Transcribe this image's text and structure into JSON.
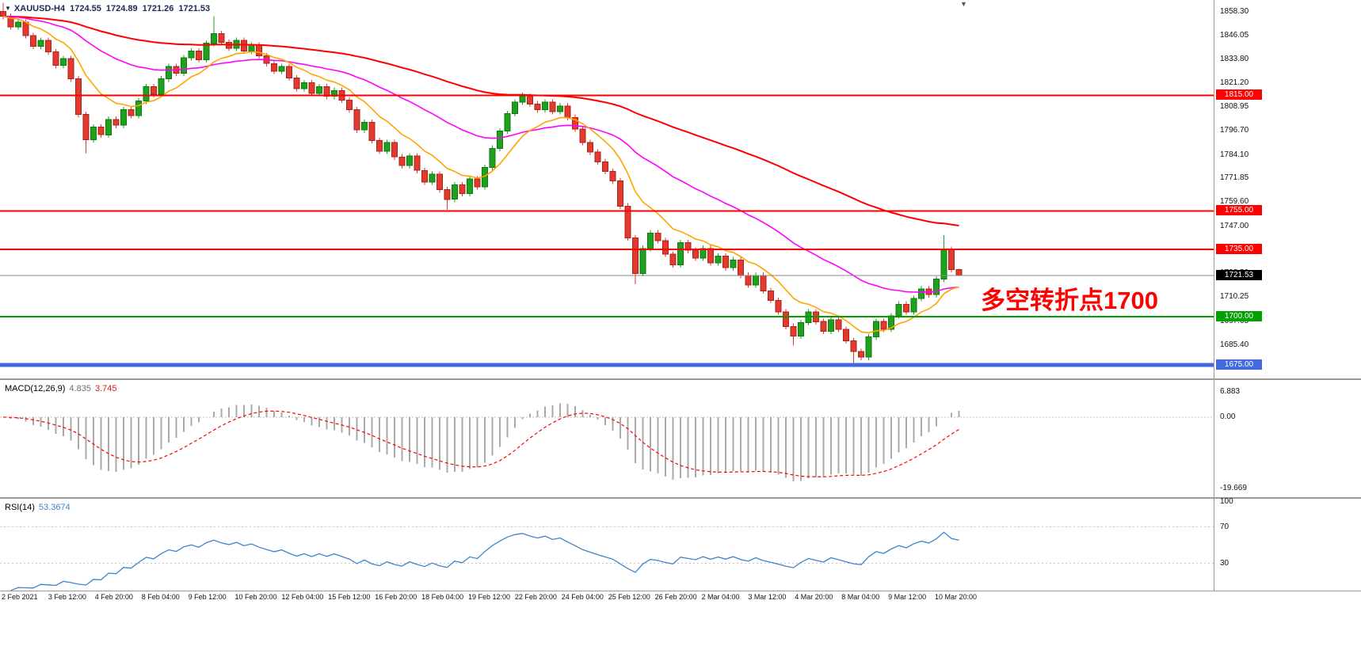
{
  "header": {
    "toggle_icon": "▼",
    "symbol_period": "XAUUSD-H4",
    "open": "1724.55",
    "high": "1724.89",
    "low": "1721.26",
    "close": "1721.53",
    "shift_icon": "▼"
  },
  "annotation": {
    "text": "多空转折点1700",
    "color": "#fe0000"
  },
  "chart_data": [
    {
      "type": "candlestick",
      "title": "XAUUSD-H4",
      "symbol": "XAUUSD",
      "timeframe": "H4",
      "ylim": [
        1668.0,
        1864.5
      ],
      "y_ticks": [
        "1858.30",
        "1846.05",
        "1833.80",
        "1821.20",
        "1808.95",
        "1796.70",
        "1784.10",
        "1771.85",
        "1759.60",
        "1747.00",
        "1734.75",
        "1722.50",
        "1710.25",
        "1697.65",
        "1685.40",
        "1673.15"
      ],
      "time_labels": [
        "2 Feb 2021",
        "3 Feb 12:00",
        "4 Feb 20:00",
        "8 Feb 04:00",
        "9 Feb 12:00",
        "10 Feb 20:00",
        "12 Feb 04:00",
        "15 Feb 12:00",
        "16 Feb 20:00",
        "18 Feb 04:00",
        "19 Feb 12:00",
        "22 Feb 20:00",
        "24 Feb 04:00",
        "25 Feb 12:00",
        "26 Feb 20:00",
        "2 Mar 04:00",
        "3 Mar 12:00",
        "4 Mar 20:00",
        "8 Mar 04:00",
        "9 Mar 12:00",
        "10 Mar 20:00"
      ],
      "ohlc": [
        [
          1858.5,
          1863.0,
          1854.5,
          1856.0
        ],
        [
          1856.0,
          1857.5,
          1849.0,
          1850.5
        ],
        [
          1850.5,
          1854.5,
          1849.0,
          1853.0
        ],
        [
          1853.0,
          1854.5,
          1844.5,
          1846.0
        ],
        [
          1846.0,
          1847.5,
          1839.0,
          1840.5
        ],
        [
          1840.5,
          1845.0,
          1839.0,
          1843.5
        ],
        [
          1843.5,
          1845.0,
          1836.0,
          1837.5
        ],
        [
          1837.5,
          1839.0,
          1829.0,
          1830.5
        ],
        [
          1830.5,
          1835.5,
          1829.0,
          1834.0
        ],
        [
          1834.0,
          1835.5,
          1822.0,
          1823.5
        ],
        [
          1823.5,
          1825.0,
          1803.5,
          1805.0
        ],
        [
          1805.0,
          1806.5,
          1785.0,
          1792.0
        ],
        [
          1792.0,
          1800.0,
          1790.5,
          1798.5
        ],
        [
          1798.5,
          1800.0,
          1793.0,
          1794.5
        ],
        [
          1794.5,
          1804.0,
          1793.0,
          1802.5
        ],
        [
          1802.5,
          1804.0,
          1798.0,
          1799.5
        ],
        [
          1799.5,
          1809.0,
          1798.0,
          1807.5
        ],
        [
          1807.5,
          1809.0,
          1803.0,
          1804.5
        ],
        [
          1804.5,
          1813.5,
          1803.0,
          1812.0
        ],
        [
          1812.0,
          1821.0,
          1810.5,
          1819.5
        ],
        [
          1819.5,
          1821.0,
          1814.0,
          1815.5
        ],
        [
          1815.5,
          1825.0,
          1814.0,
          1823.5
        ],
        [
          1823.5,
          1831.5,
          1822.0,
          1830.0
        ],
        [
          1830.0,
          1831.5,
          1825.0,
          1826.5
        ],
        [
          1826.5,
          1836.0,
          1825.0,
          1834.5
        ],
        [
          1834.5,
          1839.5,
          1833.0,
          1838.0
        ],
        [
          1838.0,
          1839.5,
          1832.0,
          1833.5
        ],
        [
          1833.5,
          1843.5,
          1832.0,
          1842.0
        ],
        [
          1842.0,
          1856.0,
          1840.5,
          1847.0
        ],
        [
          1847.0,
          1848.5,
          1841.0,
          1842.5
        ],
        [
          1842.5,
          1844.0,
          1838.0,
          1839.5
        ],
        [
          1839.5,
          1845.0,
          1838.0,
          1843.5
        ],
        [
          1843.5,
          1845.0,
          1836.5,
          1838.0
        ],
        [
          1838.0,
          1842.5,
          1836.5,
          1841.0
        ],
        [
          1841.0,
          1842.5,
          1834.0,
          1835.5
        ],
        [
          1835.5,
          1837.0,
          1830.0,
          1831.5
        ],
        [
          1831.5,
          1833.0,
          1826.0,
          1827.5
        ],
        [
          1827.5,
          1831.5,
          1826.0,
          1830.0
        ],
        [
          1830.0,
          1831.5,
          1822.5,
          1824.0
        ],
        [
          1824.0,
          1825.5,
          1817.0,
          1818.5
        ],
        [
          1818.5,
          1823.0,
          1817.0,
          1821.5
        ],
        [
          1821.5,
          1823.0,
          1814.5,
          1816.0
        ],
        [
          1816.0,
          1821.0,
          1814.5,
          1819.5
        ],
        [
          1819.5,
          1821.0,
          1813.0,
          1814.5
        ],
        [
          1814.5,
          1819.0,
          1813.0,
          1817.5
        ],
        [
          1817.5,
          1819.0,
          1811.0,
          1812.5
        ],
        [
          1812.5,
          1814.0,
          1806.0,
          1807.5
        ],
        [
          1807.5,
          1809.0,
          1795.5,
          1797.0
        ],
        [
          1797.0,
          1802.5,
          1795.5,
          1801.0
        ],
        [
          1801.0,
          1802.5,
          1790.0,
          1791.5
        ],
        [
          1791.5,
          1793.0,
          1784.5,
          1786.0
        ],
        [
          1786.0,
          1792.0,
          1784.5,
          1790.5
        ],
        [
          1790.5,
          1792.0,
          1781.5,
          1783.0
        ],
        [
          1783.0,
          1784.5,
          1777.0,
          1778.5
        ],
        [
          1778.5,
          1785.0,
          1777.0,
          1783.5
        ],
        [
          1783.5,
          1785.0,
          1774.5,
          1776.0
        ],
        [
          1776.0,
          1777.5,
          1768.5,
          1770.0
        ],
        [
          1770.0,
          1775.5,
          1768.5,
          1774.0
        ],
        [
          1774.0,
          1775.5,
          1764.5,
          1766.0
        ],
        [
          1766.0,
          1767.5,
          1755.5,
          1761.0
        ],
        [
          1761.0,
          1770.0,
          1759.5,
          1768.5
        ],
        [
          1768.5,
          1770.0,
          1762.5,
          1764.0
        ],
        [
          1764.0,
          1773.0,
          1762.5,
          1771.5
        ],
        [
          1771.5,
          1773.0,
          1766.0,
          1767.5
        ],
        [
          1767.5,
          1779.0,
          1766.0,
          1777.5
        ],
        [
          1777.5,
          1789.0,
          1776.0,
          1787.5
        ],
        [
          1787.5,
          1798.0,
          1786.0,
          1796.5
        ],
        [
          1796.5,
          1807.0,
          1795.0,
          1805.5
        ],
        [
          1805.5,
          1813.0,
          1804.0,
          1811.5
        ],
        [
          1811.5,
          1816.5,
          1810.0,
          1814.5
        ],
        [
          1814.5,
          1816.0,
          1809.0,
          1810.5
        ],
        [
          1810.5,
          1812.0,
          1806.0,
          1807.5
        ],
        [
          1807.5,
          1813.0,
          1806.0,
          1811.5
        ],
        [
          1811.5,
          1813.0,
          1805.0,
          1806.5
        ],
        [
          1806.5,
          1811.0,
          1805.0,
          1809.5
        ],
        [
          1809.5,
          1811.0,
          1802.0,
          1803.5
        ],
        [
          1803.5,
          1805.0,
          1796.0,
          1797.5
        ],
        [
          1797.5,
          1799.0,
          1789.0,
          1790.5
        ],
        [
          1790.5,
          1792.0,
          1784.0,
          1785.5
        ],
        [
          1785.5,
          1787.0,
          1779.0,
          1780.5
        ],
        [
          1780.5,
          1782.0,
          1774.0,
          1775.5
        ],
        [
          1775.5,
          1777.0,
          1769.0,
          1770.5
        ],
        [
          1770.5,
          1772.0,
          1756.0,
          1757.5
        ],
        [
          1757.5,
          1759.0,
          1739.5,
          1741.0
        ],
        [
          1741.0,
          1742.5,
          1717.0,
          1722.5
        ],
        [
          1722.5,
          1737.0,
          1721.0,
          1735.5
        ],
        [
          1735.5,
          1745.0,
          1734.0,
          1743.5
        ],
        [
          1743.5,
          1745.0,
          1738.0,
          1739.5
        ],
        [
          1739.5,
          1741.0,
          1731.0,
          1732.5
        ],
        [
          1732.5,
          1734.0,
          1725.5,
          1727.0
        ],
        [
          1727.0,
          1740.0,
          1725.5,
          1738.5
        ],
        [
          1738.5,
          1740.0,
          1733.0,
          1734.5
        ],
        [
          1734.5,
          1736.0,
          1729.0,
          1730.5
        ],
        [
          1730.5,
          1737.0,
          1729.0,
          1735.5
        ],
        [
          1735.5,
          1737.0,
          1726.5,
          1728.0
        ],
        [
          1728.0,
          1733.0,
          1726.5,
          1731.5
        ],
        [
          1731.5,
          1733.0,
          1724.0,
          1725.5
        ],
        [
          1725.5,
          1731.0,
          1724.0,
          1729.5
        ],
        [
          1729.5,
          1731.0,
          1720.0,
          1721.5
        ],
        [
          1721.5,
          1723.0,
          1715.0,
          1716.5
        ],
        [
          1716.5,
          1723.0,
          1715.0,
          1721.5
        ],
        [
          1721.5,
          1723.0,
          1712.0,
          1713.5
        ],
        [
          1713.5,
          1715.0,
          1707.0,
          1708.5
        ],
        [
          1708.5,
          1710.0,
          1701.0,
          1702.5
        ],
        [
          1702.5,
          1704.0,
          1693.5,
          1695.0
        ],
        [
          1695.0,
          1696.5,
          1685.0,
          1690.0
        ],
        [
          1690.0,
          1698.5,
          1688.5,
          1697.0
        ],
        [
          1697.0,
          1704.0,
          1695.5,
          1702.5
        ],
        [
          1702.5,
          1704.0,
          1696.0,
          1697.5
        ],
        [
          1697.5,
          1699.0,
          1691.0,
          1692.5
        ],
        [
          1692.5,
          1700.0,
          1691.0,
          1698.5
        ],
        [
          1698.5,
          1700.0,
          1692.0,
          1693.5
        ],
        [
          1693.5,
          1695.0,
          1686.0,
          1687.5
        ],
        [
          1687.5,
          1689.0,
          1676.0,
          1682.0
        ],
        [
          1682.0,
          1683.5,
          1677.5,
          1679.0
        ],
        [
          1679.0,
          1691.0,
          1677.5,
          1689.5
        ],
        [
          1689.5,
          1699.0,
          1688.0,
          1697.5
        ],
        [
          1697.5,
          1699.0,
          1692.0,
          1693.5
        ],
        [
          1693.5,
          1702.0,
          1692.0,
          1700.5
        ],
        [
          1700.5,
          1708.0,
          1699.0,
          1706.5
        ],
        [
          1706.5,
          1708.0,
          1701.0,
          1702.5
        ],
        [
          1702.5,
          1711.0,
          1701.0,
          1709.5
        ],
        [
          1709.5,
          1716.0,
          1708.0,
          1714.5
        ],
        [
          1714.5,
          1716.0,
          1710.0,
          1711.5
        ],
        [
          1711.5,
          1721.0,
          1710.0,
          1719.5
        ],
        [
          1719.5,
          1742.5,
          1718.0,
          1735.0
        ],
        [
          1735.0,
          1736.5,
          1723.0,
          1724.55
        ],
        [
          1724.55,
          1724.89,
          1721.26,
          1721.53
        ]
      ],
      "overlays": [
        {
          "name": "ma-slow",
          "method": "ema",
          "period": 90,
          "color": "#fe0000",
          "width": 2
        },
        {
          "name": "ma-mid",
          "method": "ema",
          "period": 34,
          "color": "#ff00ff",
          "width": 1.6
        },
        {
          "name": "ma-fast",
          "method": "ema",
          "period": 10,
          "color": "#ffa500",
          "width": 1.6
        }
      ],
      "levels": [
        {
          "price": 1815.0,
          "label": "1815.00",
          "color": "#fe0000",
          "width": 2
        },
        {
          "price": 1755.0,
          "label": "1755.00",
          "color": "#fe0000",
          "width": 2
        },
        {
          "price": 1735.0,
          "label": "1735.00",
          "color": "#fe0000",
          "width": 2
        },
        {
          "price": 1700.0,
          "label": "1700.00",
          "color": "#00a000",
          "width": 2
        },
        {
          "price": 1675.0,
          "label": "1675.00",
          "color": "#4169e1",
          "width": 5
        }
      ],
      "current_price": {
        "value": 1721.53,
        "label": "1721.53",
        "line_color": "#8a8a8a",
        "box_color": "#000000"
      },
      "up_color": "#1fa11f",
      "down_color": "#e23a2e"
    },
    {
      "type": "macd",
      "label": "MACD(12,26,9)",
      "fast": 12,
      "slow": 26,
      "signal": 9,
      "value_macd": "4.835",
      "value_signal": "3.745",
      "axis_ticks": [
        {
          "v": 6.883,
          "label": "6.883"
        },
        {
          "v": 0,
          "label": "0.00"
        },
        {
          "v": -19.669,
          "label": "-19.669"
        }
      ],
      "ylim": [
        -22,
        10
      ],
      "histogram_color": "#a9a9a9",
      "signal_color": "#fe0000"
    },
    {
      "type": "rsi",
      "label": "RSI(14)",
      "period": 14,
      "value": "53.3674",
      "levels": [
        70,
        30
      ],
      "axis_ticks": [
        {
          "v": 97,
          "label": "100"
        },
        {
          "v": 70,
          "label": "70"
        },
        {
          "v": 30,
          "label": "30"
        }
      ],
      "ylim": [
        0,
        100
      ],
      "line_color": "#3d85c8"
    }
  ]
}
